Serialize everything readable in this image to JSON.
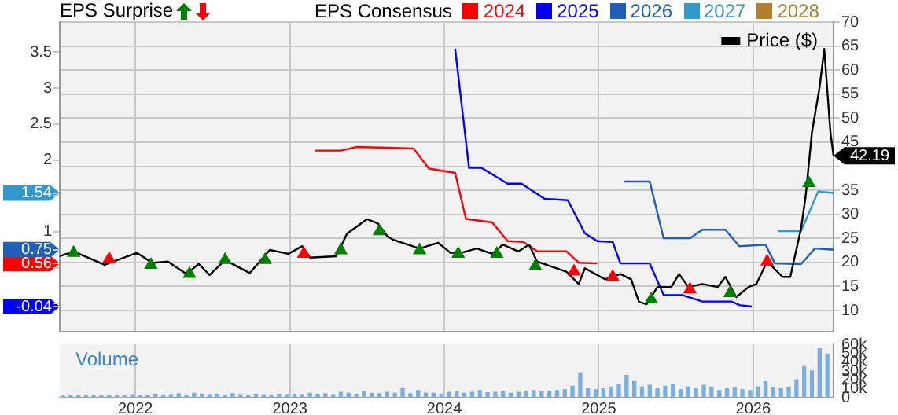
{
  "chart_data": [
    {
      "type": "line",
      "annotations": [
        "EPS Surprise"
      ],
      "legend_title": "EPS Consensus",
      "legend": "top",
      "grid": true,
      "tick_labels": "y",
      "xlim": [
        2021.51,
        2026.52
      ],
      "xticks": [
        2022,
        2023,
        2024,
        2025,
        2026
      ],
      "ylim": [
        -0.39,
        3.92
      ],
      "yticks": [
        {
          "value": 0,
          "label": null
        },
        {
          "value": 0.5,
          "label": null
        },
        1,
        {
          "value": 1.5,
          "label": null
        },
        2,
        2.5,
        3,
        3.5,
        -0.04,
        0.56,
        0.75,
        1.54
      ],
      "y2lim": [
        5.6,
        70
      ],
      "y2ticks": [
        10,
        15,
        20,
        25,
        30,
        35,
        {
          "value": 40,
          "label": null
        },
        45,
        50,
        55,
        60,
        65,
        70
      ],
      "series": [
        {
          "name": "Price ($)",
          "color": "#000000",
          "axis": "y2",
          "x": [
            2021.51,
            2021.6,
            2021.8,
            2022.01,
            2022.11,
            2022.21,
            2022.33,
            2022.41,
            2022.48,
            2022.58,
            2022.74,
            2022.87,
            2022.99,
            2023.08,
            2023.13,
            2023.3,
            2023.37,
            2023.5,
            2023.57,
            2023.63,
            2023.67,
            2023.84,
            2023.96,
            2024.04,
            2024.11,
            2024.21,
            2024.31,
            2024.38,
            2024.48,
            2024.55,
            2024.6,
            2024.69,
            2024.79,
            2024.87,
            2024.91,
            2025.04,
            2025.14,
            2025.21,
            2025.26,
            2025.31,
            2025.38,
            2025.47,
            2025.52,
            2025.58,
            2025.67,
            2025.77,
            2025.82,
            2025.89,
            2025.97,
            2026.02,
            2026.09,
            2026.19,
            2026.24,
            2026.31,
            2026.34,
            2026.38,
            2026.43,
            2026.46,
            2026.5,
            2026.52
          ],
          "values": [
            21.3,
            22.3,
            19.5,
            22,
            19.9,
            20.2,
            17.6,
            19.7,
            17.4,
            20.5,
            17.8,
            22.6,
            21.8,
            23.4,
            21,
            21.3,
            26,
            29,
            28.1,
            25.5,
            24.7,
            22.9,
            24.1,
            22,
            22,
            22.9,
            21.8,
            23.7,
            22.3,
            23.7,
            20.2,
            19.2,
            18.1,
            15.5,
            18.8,
            16.5,
            17.6,
            16.5,
            11.8,
            11.3,
            14.9,
            14.9,
            17.6,
            14.9,
            15.5,
            14.9,
            17,
            12.8,
            14.9,
            15.5,
            20.2,
            17,
            17,
            27.1,
            33.9,
            47,
            56.5,
            64.4,
            47,
            42.19
          ],
          "value_labels": [
            null,
            null,
            null,
            null,
            null,
            null,
            null,
            null,
            null,
            null,
            null,
            null,
            null,
            null,
            null,
            null,
            null,
            null,
            null,
            null,
            null,
            null,
            null,
            null,
            null,
            null,
            null,
            null,
            null,
            null,
            null,
            null,
            null,
            null,
            null,
            null,
            null,
            null,
            null,
            null,
            null,
            null,
            null,
            null,
            null,
            null,
            null,
            null,
            null,
            null,
            null,
            null,
            null,
            null,
            null,
            null,
            null,
            null,
            null,
            "42.19"
          ]
        },
        {
          "name": "2024",
          "color": "#ff0000",
          "x": [
            2023.16,
            2023.33,
            2023.43,
            2023.8,
            2023.9,
            2024.07,
            2024.14,
            2024.31,
            2024.41,
            2024.51,
            2024.6,
            2024.79,
            2024.87,
            2024.99
          ],
          "values": [
            2.13,
            2.13,
            2.18,
            2.16,
            1.88,
            1.82,
            1.18,
            1.13,
            0.87,
            0.86,
            0.73,
            0.73,
            0.57,
            0.56
          ]
        },
        {
          "name": "2025",
          "color": "#0000ff",
          "x": [
            2024.07,
            2024.16,
            2024.24,
            2024.41,
            2024.5,
            2024.65,
            2024.8,
            2024.91,
            2024.99,
            2025.09,
            2025.14,
            2025.33,
            2025.42,
            2025.54,
            2025.67,
            2025.86,
            2025.91,
            2025.99
          ],
          "values": [
            3.55,
            1.89,
            1.89,
            1.67,
            1.67,
            1.46,
            1.44,
            0.98,
            0.87,
            0.86,
            0.56,
            0.56,
            0.12,
            0.12,
            0.03,
            0.03,
            -0.02,
            -0.04
          ]
        },
        {
          "name": "2026",
          "color": "#1f5fb4",
          "x": [
            2025.16,
            2025.33,
            2025.42,
            2025.59,
            2025.67,
            2025.82,
            2025.91,
            2026.08,
            2026.14,
            2026.31,
            2026.4,
            2026.52
          ],
          "values": [
            1.7,
            1.7,
            0.91,
            0.91,
            1.03,
            1.03,
            0.8,
            0.82,
            0.56,
            0.55,
            0.77,
            0.75
          ]
        },
        {
          "name": "2027",
          "color": "#3399cc",
          "x": [
            2026.16,
            2026.31,
            2026.42,
            2026.52
          ],
          "values": [
            1.01,
            1.01,
            1.56,
            1.54
          ]
        },
        {
          "name": "2028",
          "color": "#b08030"
        },
        {
          "type": "scatter",
          "color": "#008000",
          "axis": "y2",
          "marker": "triangle",
          "x": [
            2021.6,
            2022.1,
            2022.35,
            2022.58,
            2022.84,
            2023.33,
            2023.58,
            2023.84,
            2024.09,
            2024.34,
            2024.59,
            2025.34,
            2025.85,
            2026.36
          ],
          "values": [
            22,
            19.5,
            17.6,
            20.5,
            20.5,
            22.5,
            26.5,
            22.5,
            21.8,
            21.8,
            19.2,
            12.3,
            13.6,
            36.5
          ]
        },
        {
          "type": "scatter",
          "color": "#ff0000",
          "axis": "y2",
          "marker": "triangle",
          "x": [
            2021.83,
            2023.09,
            2024.84,
            2025.09,
            2025.59,
            2026.09
          ],
          "values": [
            20.7,
            21.8,
            18.1,
            17,
            14.4,
            20.2
          ]
        }
      ]
    },
    {
      "type": "bar",
      "annotations": [
        "Volume"
      ],
      "grid": "x",
      "xlim": [
        2021.51,
        2026.52
      ],
      "xticks": [
        2022,
        2023,
        2024,
        2025,
        2026
      ],
      "ylim": [
        0,
        60000
      ],
      "yticks": [
        0,
        {
          "value": 10000,
          "label": "10k"
        },
        {
          "value": 20000,
          "label": "20k"
        },
        {
          "value": 30000,
          "label": "30k"
        },
        {
          "value": 40000,
          "label": "40k"
        },
        {
          "value": 50000,
          "label": "50k"
        },
        {
          "value": 60000,
          "label": "60k"
        }
      ],
      "series": [
        {
          "color": "#7aaede",
          "x": [
            2021.53,
            2021.58,
            2021.63,
            2021.68,
            2021.73,
            2021.78,
            2021.83,
            2021.88,
            2021.93,
            2021.98,
            2022.03,
            2022.08,
            2022.13,
            2022.18,
            2022.23,
            2022.28,
            2022.33,
            2022.38,
            2022.43,
            2022.48,
            2022.53,
            2022.58,
            2022.63,
            2022.68,
            2022.73,
            2022.78,
            2022.83,
            2022.88,
            2022.93,
            2022.98,
            2023.03,
            2023.08,
            2023.13,
            2023.18,
            2023.23,
            2023.28,
            2023.33,
            2023.38,
            2023.43,
            2023.48,
            2023.53,
            2023.58,
            2023.63,
            2023.68,
            2023.73,
            2023.78,
            2023.83,
            2023.88,
            2023.93,
            2023.98,
            2024.03,
            2024.08,
            2024.13,
            2024.18,
            2024.23,
            2024.28,
            2024.33,
            2024.38,
            2024.43,
            2024.48,
            2024.53,
            2024.58,
            2024.63,
            2024.68,
            2024.73,
            2024.78,
            2024.83,
            2024.88,
            2024.93,
            2024.98,
            2025.03,
            2025.08,
            2025.13,
            2025.18,
            2025.23,
            2025.28,
            2025.33,
            2025.38,
            2025.43,
            2025.48,
            2025.53,
            2025.58,
            2025.63,
            2025.68,
            2025.73,
            2025.78,
            2025.83,
            2025.88,
            2025.93,
            2025.98,
            2026.03,
            2026.08,
            2026.13,
            2026.18,
            2026.23,
            2026.28,
            2026.33,
            2026.38,
            2026.43,
            2026.48
          ],
          "values": [
            2000,
            2500,
            2000,
            3000,
            2500,
            2000,
            3000,
            2500,
            2000,
            3500,
            3000,
            2500,
            4000,
            3000,
            3500,
            4500,
            3000,
            5000,
            4000,
            3500,
            4000,
            3000,
            4500,
            3500,
            3000,
            4000,
            3500,
            3000,
            4000,
            3500,
            4000,
            3500,
            5000,
            4000,
            4500,
            3500,
            6000,
            5000,
            4000,
            7000,
            5000,
            4500,
            6000,
            5000,
            10000,
            4500,
            8000,
            5000,
            5000,
            4000,
            6000,
            7000,
            5000,
            6000,
            8000,
            5500,
            6000,
            7000,
            5000,
            6000,
            7500,
            8000,
            6500,
            7000,
            8000,
            9000,
            13000,
            28000,
            10000,
            9000,
            10000,
            12000,
            15000,
            25000,
            18000,
            12000,
            14000,
            10000,
            13000,
            15000,
            9000,
            12000,
            10000,
            14000,
            12000,
            8000,
            10000,
            11000,
            9000,
            8000,
            12000,
            18000,
            11000,
            10000,
            11000,
            20000,
            35000,
            30000,
            55000,
            48000
          ]
        }
      ]
    }
  ]
}
